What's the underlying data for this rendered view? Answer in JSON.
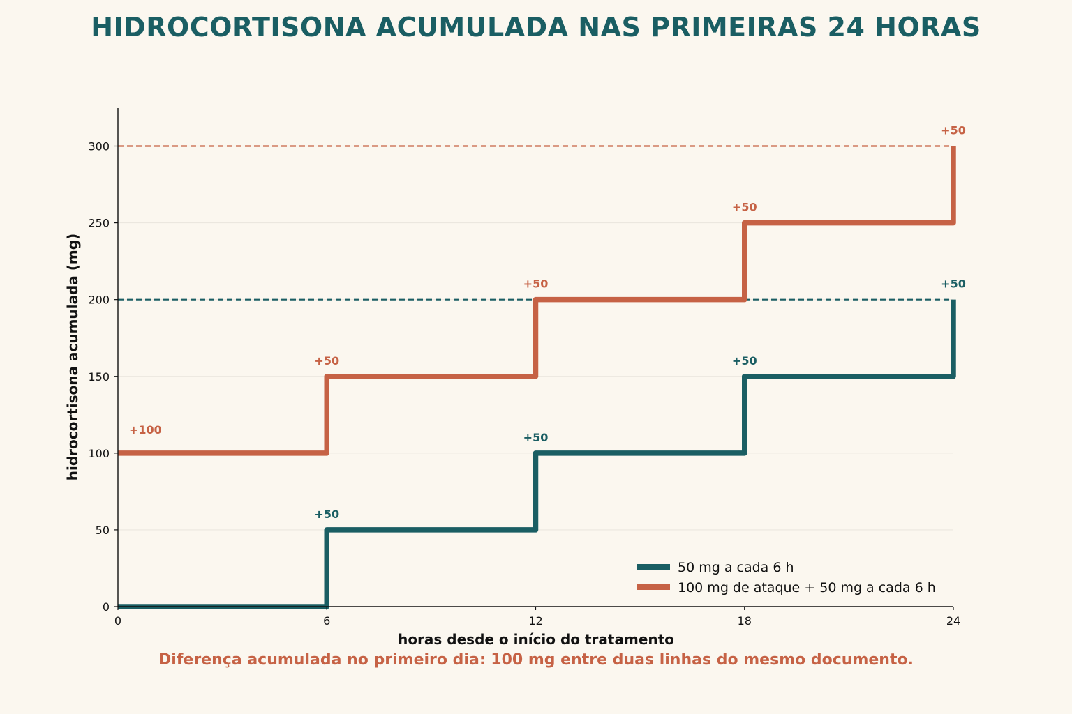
{
  "colors": {
    "background": "#fbf7ef",
    "teal": "#1a5e63",
    "orange": "#c66245",
    "axis": "#111111",
    "grid": "#ebe7df"
  },
  "chart_data": {
    "type": "line",
    "step": "post",
    "title": "HIDROCORTISONA ACUMULADA NAS PRIMEIRAS 24 HORAS",
    "xlabel": "horas desde o início do tratamento",
    "ylabel": "hidrocortisona acumulada (mg)",
    "xlim": [
      0,
      24
    ],
    "ylim": [
      0,
      325
    ],
    "xticks": [
      0,
      6,
      12,
      18,
      24
    ],
    "yticks": [
      0,
      50,
      100,
      150,
      200,
      250,
      300
    ],
    "grid": "horizontal",
    "legend_position": "bottom-right",
    "series": [
      {
        "name": "50 mg a cada 6 h",
        "color": "#1a5e63",
        "x": [
          0,
          6,
          12,
          18,
          24
        ],
        "y": [
          0,
          50,
          100,
          150,
          200
        ],
        "final_reference": 200,
        "annotations": [
          {
            "x": 6,
            "y": 50,
            "text": "+50"
          },
          {
            "x": 12,
            "y": 100,
            "text": "+50"
          },
          {
            "x": 18,
            "y": 150,
            "text": "+50"
          },
          {
            "x": 24,
            "y": 200,
            "text": "+50"
          }
        ]
      },
      {
        "name": "100 mg de ataque + 50 mg a cada 6 h",
        "color": "#c66245",
        "x": [
          0,
          6,
          12,
          18,
          24
        ],
        "y": [
          100,
          150,
          200,
          250,
          300
        ],
        "final_reference": 300,
        "annotations": [
          {
            "x": 0,
            "y": 100,
            "text": "+100"
          },
          {
            "x": 6,
            "y": 150,
            "text": "+50"
          },
          {
            "x": 12,
            "y": 200,
            "text": "+50"
          },
          {
            "x": 18,
            "y": 250,
            "text": "+50"
          },
          {
            "x": 24,
            "y": 300,
            "text": "+50"
          }
        ]
      }
    ],
    "footnote": "Diferença acumulada no primeiro dia: 100 mg entre duas linhas do mesmo documento."
  }
}
